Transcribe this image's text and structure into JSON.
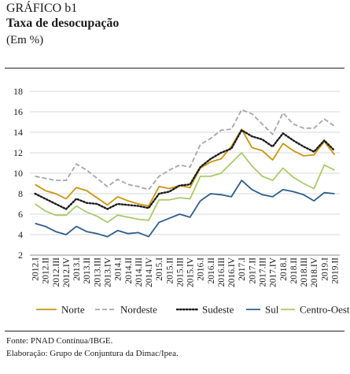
{
  "header": {
    "kicker": "GRÁFICO b1",
    "title": "Taxa de desocupação",
    "unit": "(Em %)"
  },
  "notes": {
    "source": "Fonte: PNAD Contínua/IBGE.",
    "elaboration": "Elaboração: Grupo de Conjuntura da Dimac/Ipea."
  },
  "chart_data": {
    "type": "line",
    "title": "Taxa de desocupação",
    "ylabel": "(Em %)",
    "ylim": [
      2,
      18
    ],
    "yticks": [
      2,
      4,
      6,
      8,
      10,
      12,
      14,
      16,
      18
    ],
    "grid": "horizontal",
    "legend_position": "bottom",
    "x": [
      "2012.I",
      "2012.II",
      "2012.III",
      "2012.IV",
      "2013.I",
      "2013.II",
      "2013.III",
      "2013.IV",
      "2014.I",
      "2014.II",
      "2014.III",
      "2014.IV",
      "2015.I",
      "2015.II",
      "2015.III",
      "2015.IV",
      "2016.I",
      "2016.II",
      "2016.III",
      "2016.IV",
      "2017.I",
      "2017.II",
      "2017.III",
      "2017.IV",
      "2018.I",
      "2018.II",
      "2018.III",
      "2018.IV",
      "2019.I",
      "2019.II"
    ],
    "series": [
      {
        "name": "Norte",
        "color": "#c8960f",
        "style": "solid",
        "values": [
          8.9,
          8.3,
          8.0,
          7.5,
          8.6,
          8.3,
          7.6,
          6.9,
          7.7,
          7.3,
          7.0,
          6.8,
          8.7,
          8.5,
          8.8,
          8.6,
          10.5,
          11.1,
          11.4,
          12.6,
          14.3,
          12.5,
          12.2,
          11.3,
          12.9,
          12.2,
          11.7,
          11.8,
          13.1,
          11.8
        ]
      },
      {
        "name": "Nordeste",
        "color": "#a6a6a6",
        "style": "dashed",
        "values": [
          9.7,
          9.5,
          9.3,
          9.3,
          10.9,
          10.3,
          9.5,
          8.7,
          9.4,
          8.9,
          8.7,
          8.4,
          9.7,
          10.3,
          10.8,
          10.6,
          12.8,
          13.4,
          14.2,
          14.3,
          16.2,
          15.8,
          14.8,
          13.8,
          15.9,
          14.8,
          14.4,
          14.4,
          15.3,
          14.6
        ]
      },
      {
        "name": "Sudeste",
        "color": "#1a1a1a",
        "style": "dotted",
        "values": [
          8.0,
          7.5,
          7.0,
          6.5,
          7.5,
          7.1,
          7.0,
          6.5,
          7.0,
          6.9,
          6.8,
          6.6,
          8.0,
          8.2,
          8.8,
          8.9,
          10.6,
          11.4,
          12.0,
          12.4,
          14.2,
          13.6,
          13.3,
          12.6,
          13.9,
          13.2,
          12.6,
          12.1,
          13.2,
          12.2
        ]
      },
      {
        "name": "Sul",
        "color": "#2e5f8a",
        "style": "solid",
        "values": [
          5.1,
          4.8,
          4.3,
          4.0,
          4.8,
          4.3,
          4.1,
          3.8,
          4.4,
          4.1,
          4.2,
          3.8,
          5.2,
          5.6,
          6.0,
          5.7,
          7.3,
          8.0,
          7.9,
          7.7,
          9.3,
          8.4,
          7.9,
          7.7,
          8.4,
          8.2,
          7.9,
          7.3,
          8.1,
          8.0
        ]
      },
      {
        "name": "Centro-Oeste",
        "color": "#a9c96b",
        "style": "solid",
        "values": [
          7.0,
          6.3,
          5.9,
          5.9,
          6.8,
          6.2,
          5.8,
          5.2,
          5.9,
          5.7,
          5.5,
          5.4,
          7.4,
          7.4,
          7.6,
          7.5,
          9.7,
          9.7,
          10.0,
          11.0,
          12.0,
          10.7,
          9.7,
          9.3,
          10.5,
          9.6,
          9.0,
          8.5,
          10.8,
          10.3
        ]
      }
    ]
  }
}
